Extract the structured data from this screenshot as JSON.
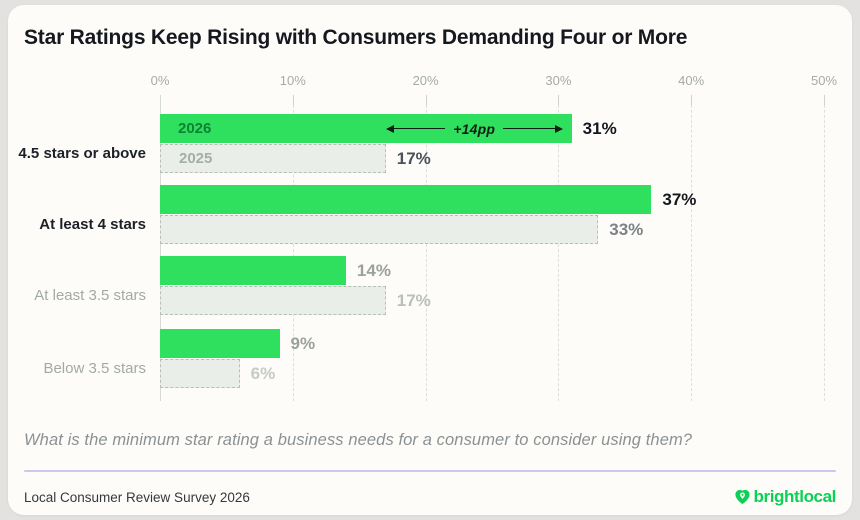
{
  "title": "Star Ratings Keep Rising with Consumers Demanding Four or More",
  "question": "What is the minimum star rating a business needs for a consumer to consider using them?",
  "footer": {
    "source": "Local Consumer Review Survey 2026",
    "brand": "brightlocal",
    "brand_icon": "heart-pin-icon"
  },
  "colors": {
    "bar_2026": "#2ee05e",
    "bar_2025_fill": "#e9eee9",
    "bar_2025_border": "#b7bfb7",
    "brand_green": "#0cd156",
    "divider": "#cdc8ee"
  },
  "chart_data": {
    "type": "bar",
    "orientation": "horizontal",
    "unit": "%",
    "title": "Star Ratings Keep Rising with Consumers Demanding Four or More",
    "axis": {
      "ticks": [
        "0%",
        "10%",
        "20%",
        "30%",
        "40%",
        "50%"
      ],
      "min": 0,
      "max": 50,
      "grid": "dashed-vertical",
      "position": "top"
    },
    "categories": [
      "4.5 stars or above",
      "At least 4 stars",
      "At least 3.5 stars",
      "Below 3.5 stars"
    ],
    "series": [
      {
        "name": "2026",
        "values": [
          31,
          37,
          14,
          9
        ]
      },
      {
        "name": "2025",
        "values": [
          17,
          33,
          17,
          6
        ]
      }
    ],
    "emphasized_categories": [
      0,
      1
    ],
    "inline_year_labels_row": 0,
    "annotation": {
      "text": "+14pp",
      "category": "4.5 stars or above",
      "from": 17,
      "to": 31
    }
  }
}
